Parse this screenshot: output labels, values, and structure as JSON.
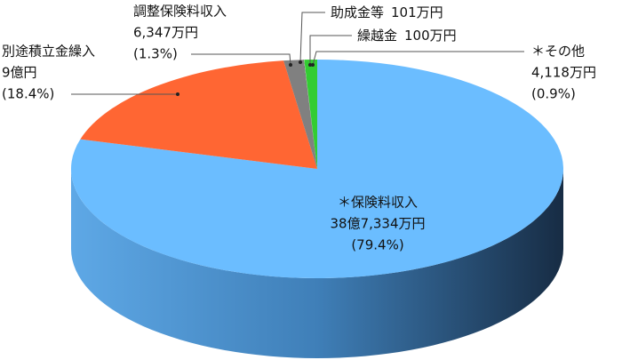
{
  "chart_data": {
    "type": "pie",
    "categories": [
      "＊保険料収入",
      "別途積立金繰入",
      "調整保険料収入",
      "助成金等",
      "繰越金",
      "＊その他"
    ],
    "values": [
      387334,
      90000,
      6347,
      101,
      100,
      4118
    ],
    "value_labels": [
      "38億7,334万円",
      "9億円",
      "6,347万円",
      "101万円",
      "100万円",
      "4,118万円"
    ],
    "percent_labels": [
      "(79.4%)",
      "(18.4%)",
      "(1.3%)",
      null,
      null,
      "(0.9%)"
    ],
    "colors": [
      "#6bbdff",
      "#ff6633",
      "#808080",
      "#2e2e2e",
      "#d8f0d0",
      "#33cc33"
    ]
  }
}
